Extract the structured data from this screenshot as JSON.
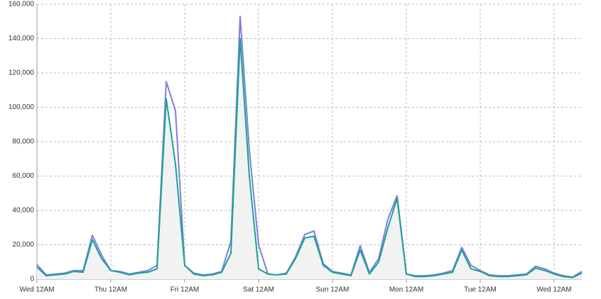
{
  "chart_data": {
    "type": "line",
    "x": [
      0,
      0.125,
      0.25,
      0.375,
      0.5,
      0.625,
      0.75,
      0.875,
      1,
      1.125,
      1.25,
      1.375,
      1.5,
      1.625,
      1.75,
      1.875,
      2,
      2.125,
      2.25,
      2.375,
      2.5,
      2.625,
      2.75,
      2.875,
      3,
      3.125,
      3.25,
      3.375,
      3.5,
      3.625,
      3.75,
      3.875,
      4,
      4.125,
      4.25,
      4.375,
      4.5,
      4.625,
      4.75,
      4.875,
      5,
      5.125,
      5.25,
      5.375,
      5.5,
      5.625,
      5.75,
      5.875,
      6,
      6.125,
      6.25,
      6.375,
      6.5,
      6.625,
      6.75,
      6.875,
      7,
      7.125,
      7.25,
      7.375
    ],
    "series": [
      {
        "color": "#7b7fe0",
        "values": [
          8500,
          2500,
          3000,
          3500,
          5000,
          5000,
          25500,
          14000,
          5000,
          4500,
          3000,
          4000,
          5000,
          8000,
          115000,
          98000,
          8000,
          3500,
          2500,
          3000,
          4500,
          22000,
          153000,
          75000,
          20000,
          3000,
          2500,
          3500,
          13000,
          26000,
          28000,
          9000,
          4500,
          3500,
          2500,
          19500,
          4000,
          12000,
          35000,
          48500,
          3000,
          2000,
          2000,
          2500,
          3500,
          5000,
          18500,
          8000,
          5000,
          2500,
          2000,
          2000,
          2500,
          3000,
          7500,
          6000,
          3500,
          2000,
          1200,
          4500
        ]
      },
      {
        "color": "#1aa38f",
        "values": [
          7000,
          2000,
          2500,
          3000,
          4500,
          4000,
          23000,
          12000,
          5000,
          4000,
          2500,
          3500,
          4000,
          6000,
          105000,
          67000,
          8000,
          3000,
          2000,
          2500,
          4000,
          15000,
          140000,
          60000,
          6000,
          3000,
          2500,
          3000,
          12000,
          24000,
          25000,
          8000,
          4000,
          3000,
          2000,
          17000,
          3000,
          10000,
          30000,
          47000,
          3000,
          1500,
          1500,
          2000,
          3000,
          4000,
          17000,
          6000,
          4500,
          2000,
          1500,
          1500,
          2000,
          2500,
          6500,
          5000,
          3000,
          1500,
          1000,
          3500
        ]
      }
    ],
    "area_color": "#f2f2f2",
    "xlim": [
      0,
      7.375
    ],
    "xticks": [
      {
        "value": 0,
        "label": "Wed 12AM"
      },
      {
        "value": 1,
        "label": "Thu 12AM"
      },
      {
        "value": 2,
        "label": "Fri 12AM"
      },
      {
        "value": 3,
        "label": "Sat 12AM"
      },
      {
        "value": 4,
        "label": "Sun 12AM"
      },
      {
        "value": 5,
        "label": "Mon 12AM"
      },
      {
        "value": 6,
        "label": "Tue 12AM"
      },
      {
        "value": 7,
        "label": "Wed 12AM"
      }
    ],
    "ylim": [
      0,
      160000
    ],
    "yticks": [
      0,
      {
        "value": 20000,
        "label": "20,000"
      },
      {
        "value": 40000,
        "label": "40,000"
      },
      {
        "value": 60000,
        "label": "60,000"
      },
      {
        "value": 80000,
        "label": "80,000"
      },
      {
        "value": 100000,
        "label": "100,000"
      },
      {
        "value": 120000,
        "label": "120,000"
      },
      {
        "value": 140000,
        "label": "140,000"
      },
      {
        "value": 160000,
        "label": "160,000"
      }
    ],
    "grid": true
  }
}
